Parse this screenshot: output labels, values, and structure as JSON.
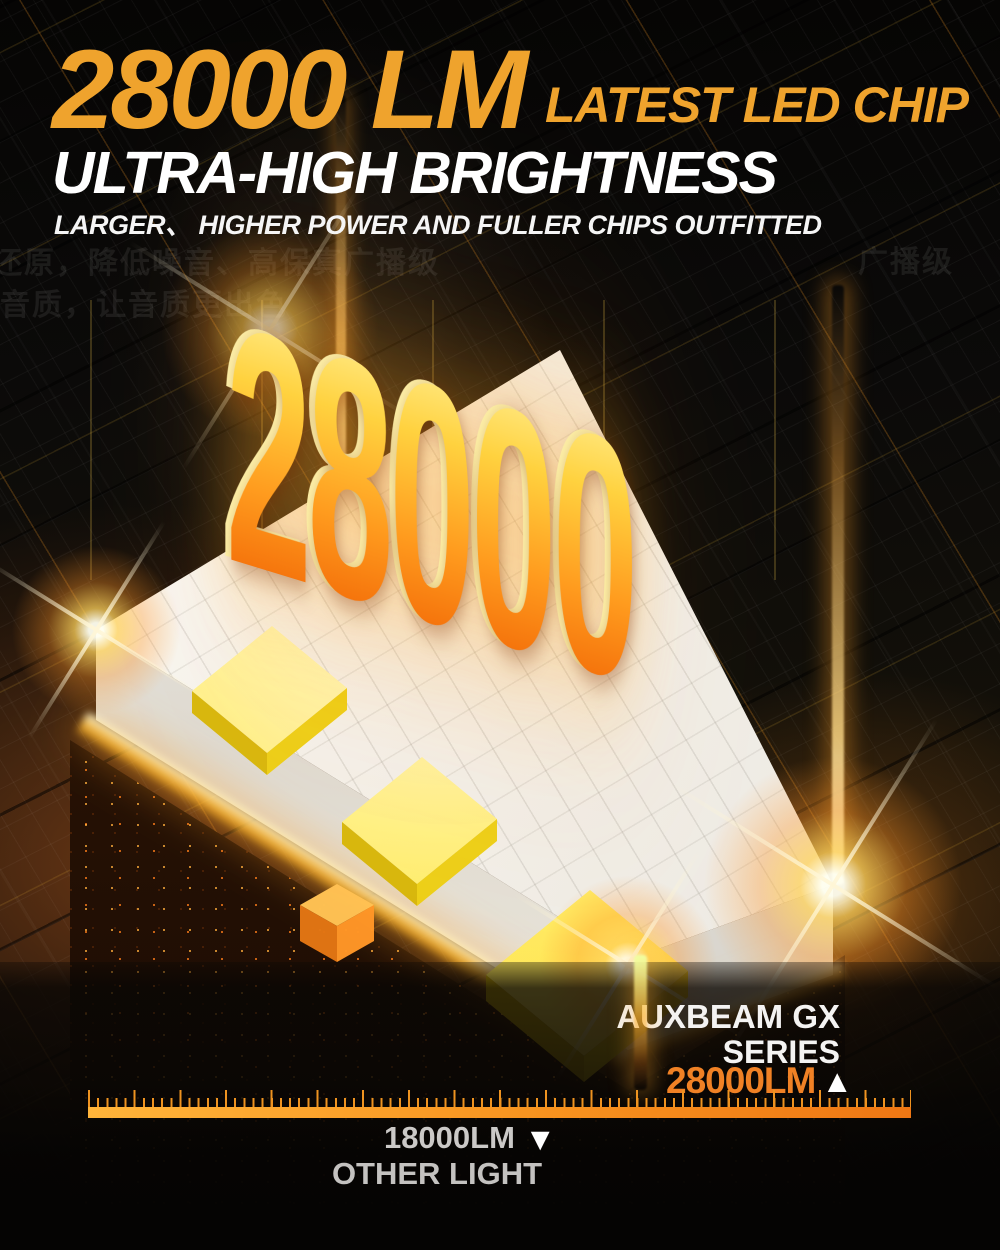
{
  "headline": {
    "lumens": "28000 LM",
    "tagline": "LATEST LED CHIP",
    "title": "ULTRA-HIGH BRIGHTNESS",
    "subtitle": "LARGER、 HIGHER POWER AND FULLER CHIPS OUTFITTED"
  },
  "background_watermark": {
    "line1": "还原，降低噪音、高保真广播级",
    "line2": "音质，让音质更出色",
    "fragment": "广播级"
  },
  "hero": {
    "big_number": "28000"
  },
  "comparison": {
    "brand_line1": "AUXBEAM GX",
    "brand_line2": "SERIES",
    "brand_value": "28000LM",
    "brand_marker": "▲",
    "other_value": "18000LM",
    "other_marker": "▼",
    "other_label": "OTHER LIGHT"
  },
  "colors": {
    "headline_orange": "#EFA32D",
    "value_orange": "#F08125",
    "ruler_orange": "#F8931F",
    "text_gray": "#CBC9C7",
    "digit_gradient_top": "#FFF3A0",
    "digit_gradient_bottom": "#F4700A"
  }
}
